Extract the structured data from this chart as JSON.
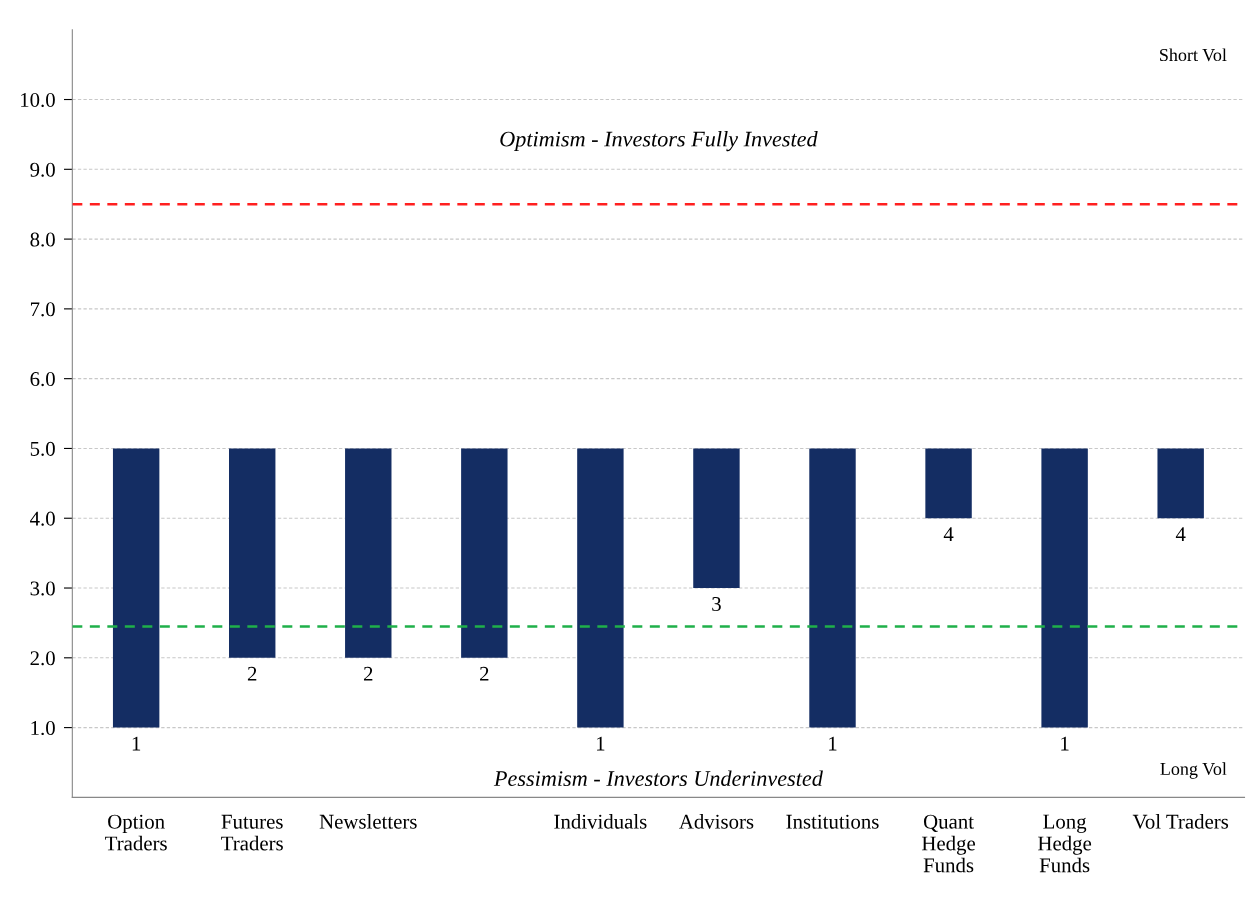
{
  "chart_data": {
    "type": "bar",
    "categories": [
      "Option Traders",
      "Futures Traders",
      "Newsletters",
      null,
      "Individuals",
      "Advisors",
      "Institutions",
      "Quant Hedge Funds",
      "Long Hedge Funds",
      "Vol Traders"
    ],
    "base": [
      5,
      5,
      5,
      5,
      5,
      5,
      5,
      5,
      5,
      5
    ],
    "values": [
      -4,
      -3,
      -3,
      -3,
      -4,
      -2,
      -4,
      -1,
      -4,
      -1
    ],
    "value_labels": [
      "1",
      "2",
      "2",
      "2",
      "1",
      "3",
      "1",
      "4",
      "1",
      "4"
    ],
    "color": "#142d63",
    "ylim": [
      0,
      11
    ],
    "yticks": [
      {
        "value": 1,
        "label": "1.0"
      },
      {
        "value": 2,
        "label": "2.0"
      },
      {
        "value": 3,
        "label": "3.0"
      },
      {
        "value": 4,
        "label": "4.0"
      },
      {
        "value": 5,
        "label": "5.0"
      },
      {
        "value": 6,
        "label": "6.0"
      },
      {
        "value": 7,
        "label": "7.0"
      },
      {
        "value": 8,
        "label": "8.0"
      },
      {
        "value": 9,
        "label": "9.0"
      },
      {
        "value": 10,
        "label": "10.0"
      }
    ],
    "grid": "y",
    "ref_lines": [
      {
        "axis": "y",
        "value": 8.5,
        "color": "#ff2020",
        "line_style": "dashed"
      },
      {
        "axis": "y",
        "value": 2.45,
        "color": "#1fb04a",
        "line_style": "dashed"
      }
    ],
    "annotations": [
      "Short Vol",
      "Optimism - Investors Fully Invested",
      "Pessimism - Investors Underinvested",
      "Long Vol"
    ]
  }
}
